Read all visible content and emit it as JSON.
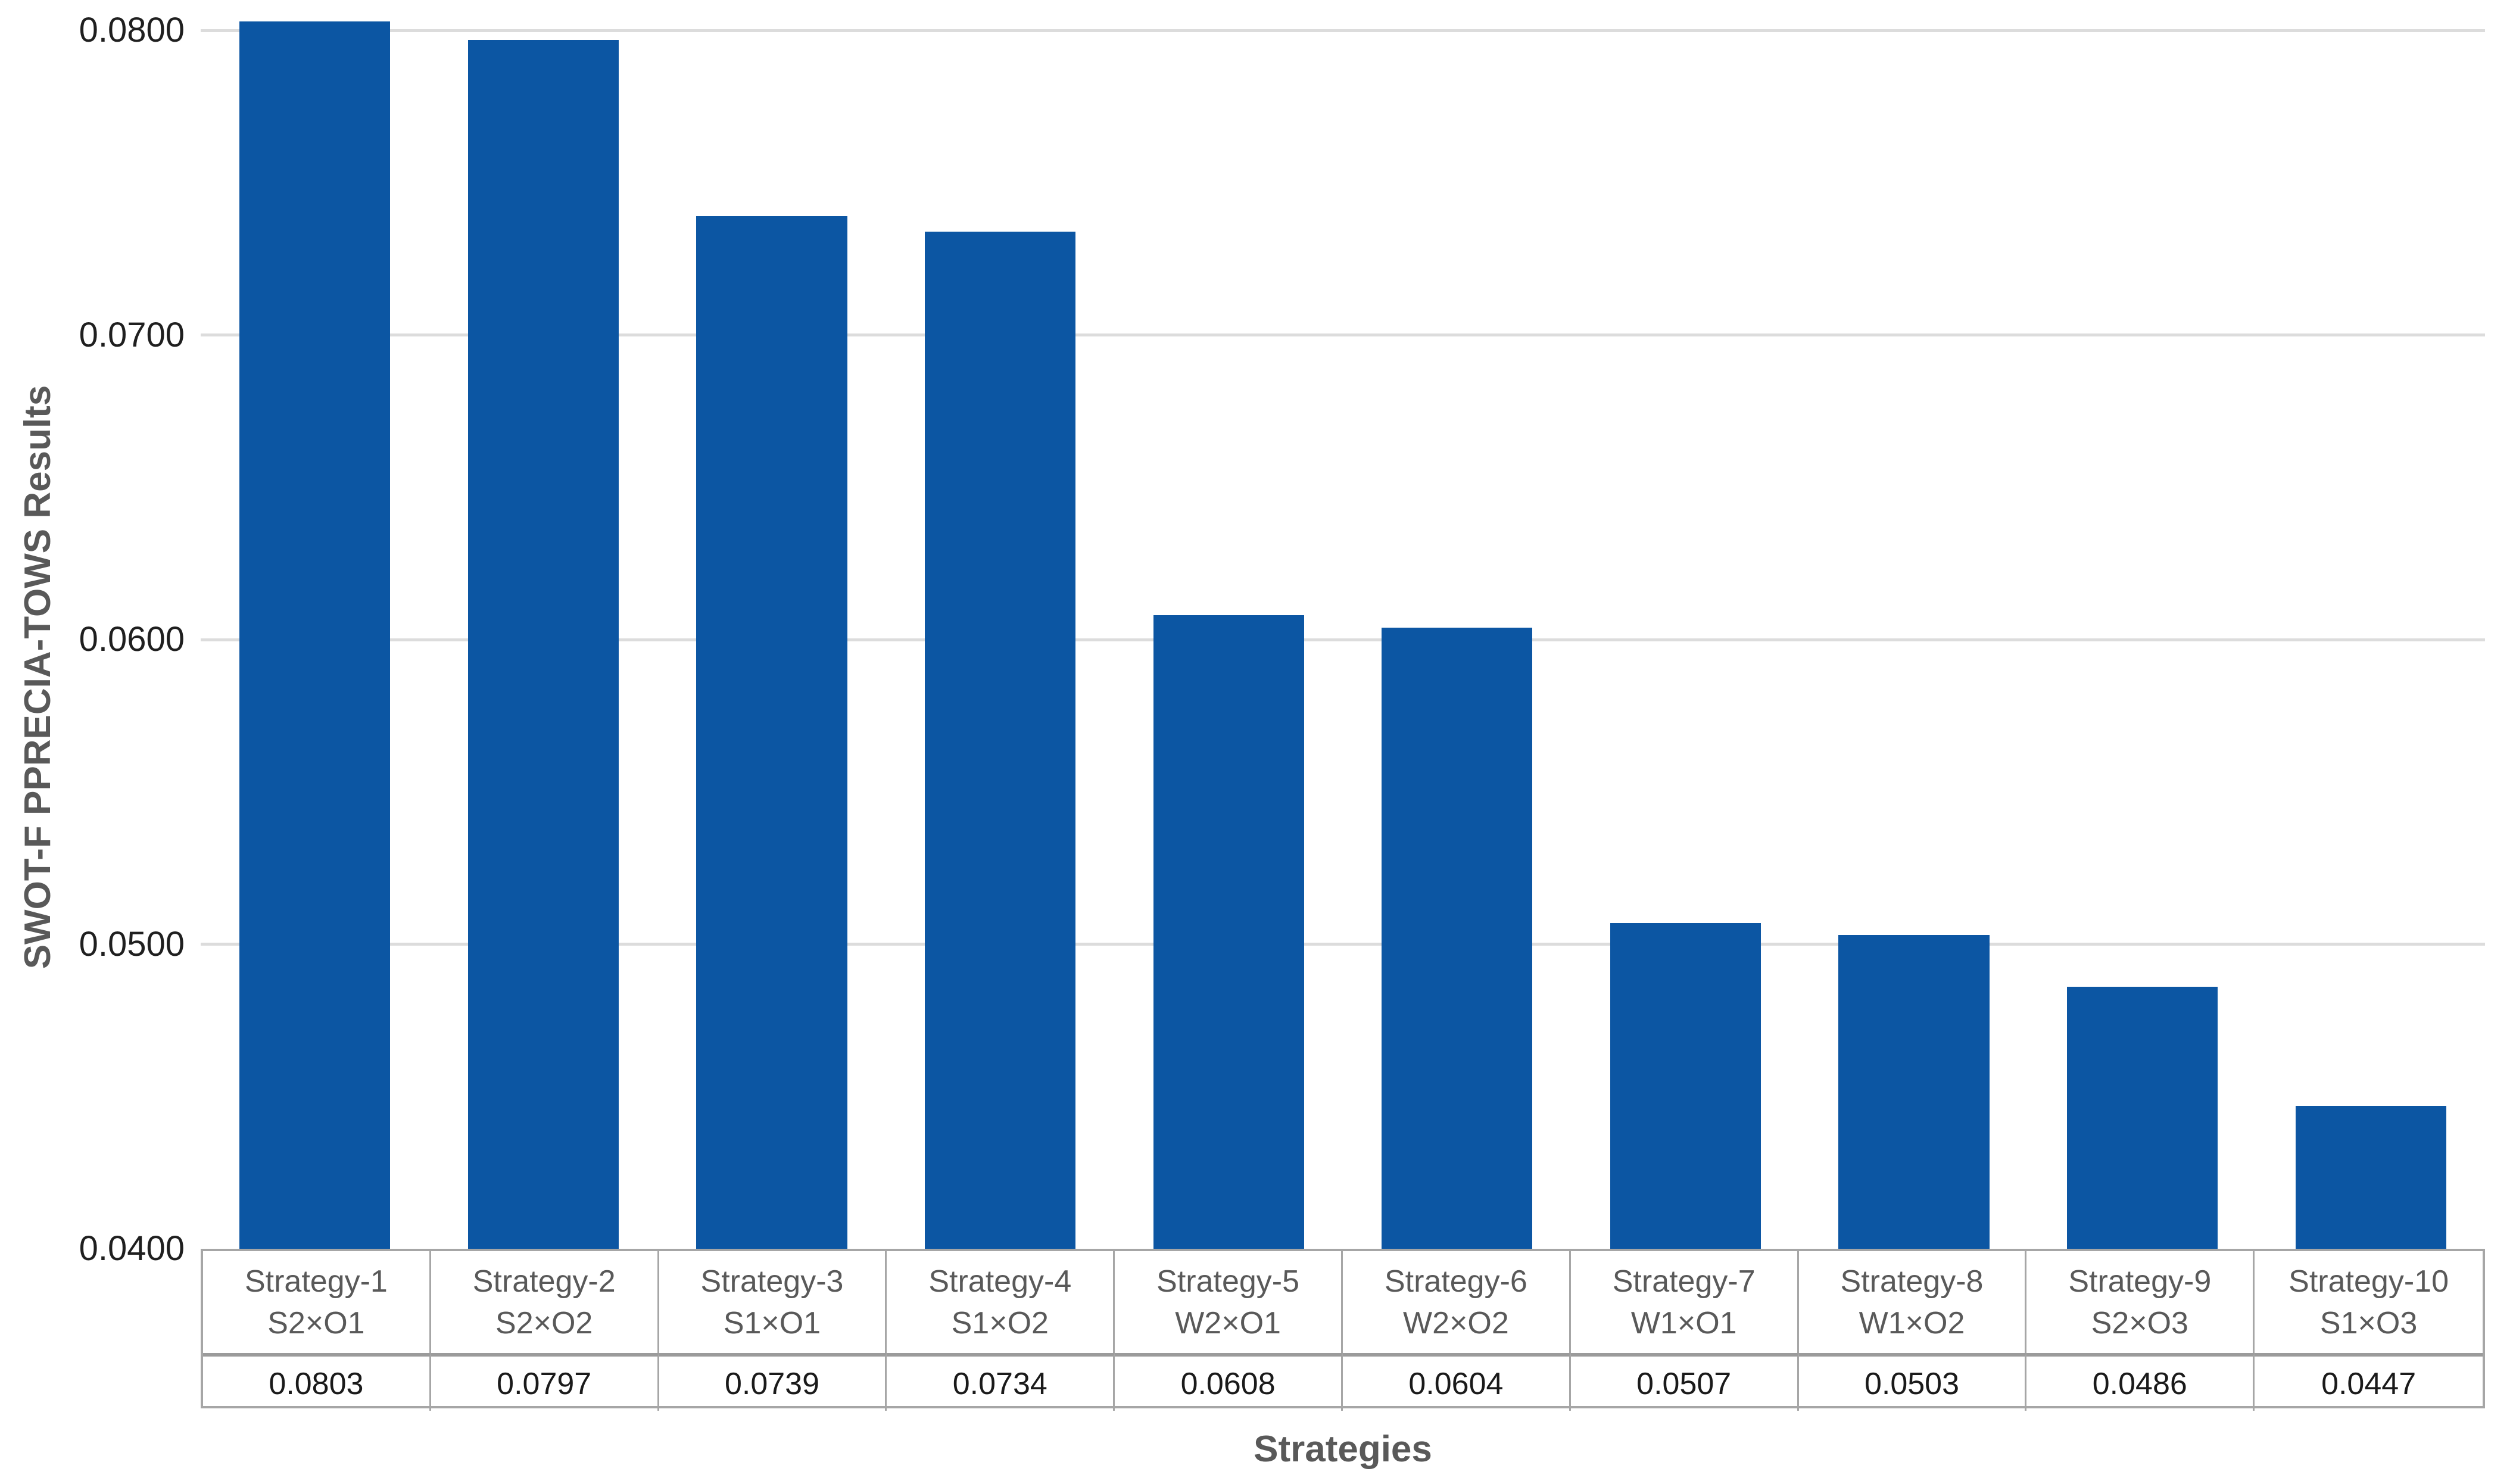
{
  "figure": {
    "background": "#ffffff",
    "bar_color": "#0c56a3",
    "gridline_color": "#dcdcdc",
    "table_border_color": "#a6a6a6",
    "label_text_color": "#595959",
    "value_text_color": "#1a1a1a"
  },
  "y_axis": {
    "title": "SWOT-F PPRECIA-TOWS Results"
  },
  "x_axis": {
    "title": "Strategies"
  },
  "chart_data": {
    "type": "bar",
    "title": "",
    "xlabel": "Strategies",
    "ylabel": "SWOT-F PPRECIA-TOWS Results",
    "categories": [
      "Strategy-1",
      "Strategy-2",
      "Strategy-3",
      "Strategy-4",
      "Strategy-5",
      "Strategy-6",
      "Strategy-7",
      "Strategy-8",
      "Strategy-9",
      "Strategy-10"
    ],
    "codes": [
      "S2×O1",
      "S2×O2",
      "S1×O1",
      "S1×O2",
      "W2×O1",
      "W2×O2",
      "W1×O1",
      "W1×O2",
      "S2×O3",
      "S1×O3"
    ],
    "values": [
      0.0803,
      0.0797,
      0.0739,
      0.0734,
      0.0608,
      0.0604,
      0.0507,
      0.0503,
      0.0486,
      0.0447
    ],
    "value_labels": [
      "0.0803",
      "0.0797",
      "0.0739",
      "0.0734",
      "0.0608",
      "0.0604",
      "0.0507",
      "0.0503",
      "0.0486",
      "0.0447"
    ],
    "ylim": [
      0.04,
      0.081
    ],
    "yticks": [
      0.08,
      0.07,
      0.06,
      0.05,
      0.04
    ],
    "ytick_labels": [
      "0.0800",
      "0.0700",
      "0.0600",
      "0.0500",
      "0.0400"
    ],
    "grid": "horizontal",
    "legend_position": "none",
    "bar_color": "#0c56a3"
  }
}
